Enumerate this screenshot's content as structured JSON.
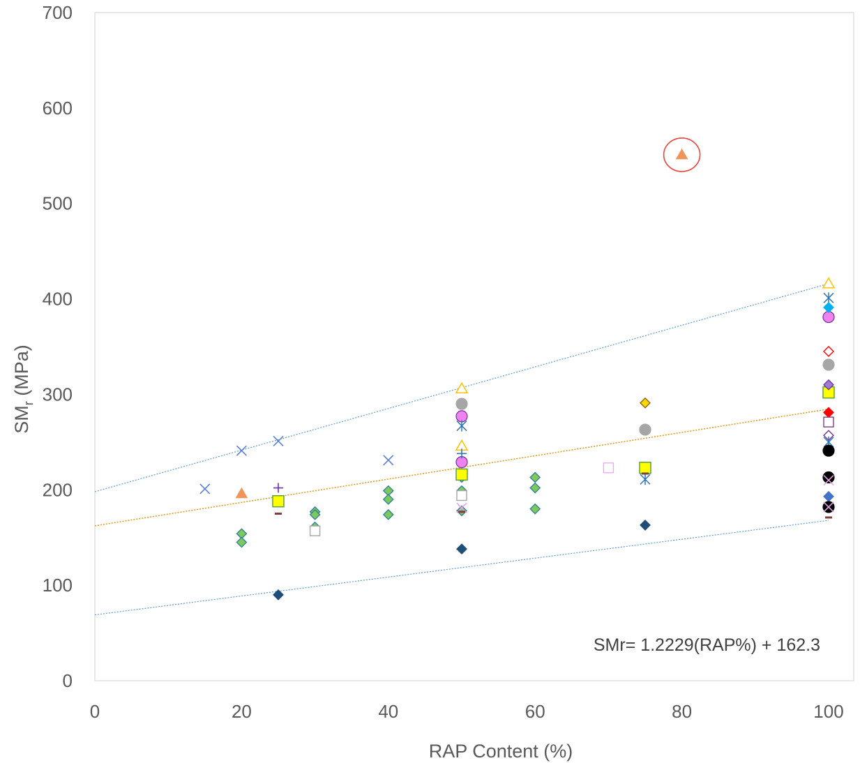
{
  "chart_data": {
    "type": "scatter",
    "title": "",
    "xlabel": "RAP Content (%)",
    "ylabel": "SMr (MPa)",
    "ylabel_parts": {
      "base": "SM",
      "sub": "r",
      "rest": " (MPa)"
    },
    "xlim": [
      0,
      100
    ],
    "ylim": [
      0,
      700
    ],
    "xticks": [
      "0",
      "20",
      "40",
      "60",
      "80",
      "100"
    ],
    "yticks": [
      "0",
      "100",
      "200",
      "300",
      "400",
      "500",
      "600",
      "700"
    ],
    "grid": false,
    "legend": "none",
    "equation": "SMr= 1.2229(RAP%) + 162.3",
    "trendlines": [
      {
        "kind": "regression",
        "color": "#E69A1C",
        "x": [
          0,
          100
        ],
        "y": [
          162.3,
          284.6
        ]
      },
      {
        "kind": "upper-bound",
        "color": "#5B9BD5",
        "x": [
          0,
          100
        ],
        "y": [
          198,
          416
        ]
      },
      {
        "kind": "lower-bound",
        "color": "#5B9BD5",
        "x": [
          0,
          100
        ],
        "y": [
          69,
          168
        ]
      }
    ],
    "highlight": {
      "x": 80,
      "y": 551,
      "color": "#E8453C"
    },
    "points": [
      {
        "x": 15,
        "y": 201,
        "marker": "x",
        "color": "#5B7FD5"
      },
      {
        "x": 20,
        "y": 241,
        "marker": "x",
        "color": "#5B7FD5"
      },
      {
        "x": 25,
        "y": 251,
        "marker": "x",
        "color": "#5B7FD5"
      },
      {
        "x": 40,
        "y": 231,
        "marker": "x",
        "color": "#5B7FD5"
      },
      {
        "x": 20,
        "y": 196,
        "marker": "triangle-filled",
        "color": "#F0955A"
      },
      {
        "x": 80,
        "y": 551,
        "marker": "triangle-filled",
        "color": "#F0955A"
      },
      {
        "x": 20,
        "y": 154,
        "marker": "diamond-filled",
        "color": "#7DC95A",
        "stroke": "#2E7DA0"
      },
      {
        "x": 20,
        "y": 145,
        "marker": "diamond-filled",
        "color": "#7DC95A",
        "stroke": "#2E7DA0"
      },
      {
        "x": 30,
        "y": 177,
        "marker": "diamond-filled",
        "color": "#7DC95A",
        "stroke": "#2E7DA0"
      },
      {
        "x": 30,
        "y": 174,
        "marker": "diamond-filled",
        "color": "#7DC95A",
        "stroke": "#2E7DA0"
      },
      {
        "x": 30,
        "y": 161,
        "marker": "diamond-filled",
        "color": "#7DC95A",
        "stroke": "#2E7DA0"
      },
      {
        "x": 40,
        "y": 199,
        "marker": "diamond-filled",
        "color": "#7DC95A",
        "stroke": "#2E7DA0"
      },
      {
        "x": 40,
        "y": 190,
        "marker": "diamond-filled",
        "color": "#7DC95A",
        "stroke": "#2E7DA0"
      },
      {
        "x": 40,
        "y": 174,
        "marker": "diamond-filled",
        "color": "#7DC95A",
        "stroke": "#2E7DA0"
      },
      {
        "x": 50,
        "y": 217,
        "marker": "diamond-filled",
        "color": "#7DC95A",
        "stroke": "#2E7DA0"
      },
      {
        "x": 50,
        "y": 213,
        "marker": "diamond-filled",
        "color": "#7DC95A",
        "stroke": "#2E7DA0"
      },
      {
        "x": 50,
        "y": 199,
        "marker": "diamond-filled",
        "color": "#7DC95A",
        "stroke": "#2E7DA0"
      },
      {
        "x": 50,
        "y": 178,
        "marker": "diamond-filled",
        "color": "#7DC95A",
        "stroke": "#2E7DA0"
      },
      {
        "x": 60,
        "y": 213,
        "marker": "diamond-filled",
        "color": "#7DC95A",
        "stroke": "#2E7DA0"
      },
      {
        "x": 60,
        "y": 202,
        "marker": "diamond-filled",
        "color": "#7DC95A",
        "stroke": "#2E7DA0"
      },
      {
        "x": 60,
        "y": 180,
        "marker": "diamond-filled",
        "color": "#7DC95A",
        "stroke": "#2E7DA0"
      },
      {
        "x": 25,
        "y": 90,
        "marker": "diamond-filled",
        "color": "#1F4E79",
        "stroke": "#1F4E79"
      },
      {
        "x": 50,
        "y": 138,
        "marker": "diamond-filled",
        "color": "#1F4E79",
        "stroke": "#1F4E79"
      },
      {
        "x": 75,
        "y": 163,
        "marker": "diamond-filled",
        "color": "#1F4E79",
        "stroke": "#1F4E79"
      },
      {
        "x": 25,
        "y": 188,
        "marker": "square-filled",
        "color": "#FFFF00",
        "stroke": "#5BA040"
      },
      {
        "x": 50,
        "y": 216,
        "marker": "square-filled",
        "color": "#FFFF00",
        "stroke": "#5BA040"
      },
      {
        "x": 75,
        "y": 223,
        "marker": "square-filled",
        "color": "#FFFF00",
        "stroke": "#5BA040"
      },
      {
        "x": 100,
        "y": 302,
        "marker": "square-filled",
        "color": "#FFFF00",
        "stroke": "#5BA040"
      },
      {
        "x": 25,
        "y": 202,
        "marker": "plus",
        "color": "#7030A0"
      },
      {
        "x": 50,
        "y": 306,
        "marker": "triangle-open",
        "color": "#FFC000"
      },
      {
        "x": 50,
        "y": 246,
        "marker": "triangle-open",
        "color": "#FFC000"
      },
      {
        "x": 100,
        "y": 416,
        "marker": "triangle-open",
        "color": "#FFC000"
      },
      {
        "x": 50,
        "y": 290,
        "marker": "circle-filled",
        "color": "#A6A6A6"
      },
      {
        "x": 75,
        "y": 263,
        "marker": "circle-filled",
        "color": "#A6A6A6"
      },
      {
        "x": 100,
        "y": 331,
        "marker": "circle-filled",
        "color": "#A6A6A6"
      },
      {
        "x": 50,
        "y": 277,
        "marker": "circle-filled",
        "color": "#EE82EE",
        "stroke": "#7030A0"
      },
      {
        "x": 50,
        "y": 229,
        "marker": "circle-filled",
        "color": "#EE82EE",
        "stroke": "#7030A0"
      },
      {
        "x": 100,
        "y": 381,
        "marker": "circle-filled",
        "color": "#EE82EE",
        "stroke": "#7030A0"
      },
      {
        "x": 50,
        "y": 267,
        "marker": "asterisk",
        "color": "#2E75B6"
      },
      {
        "x": 50,
        "y": 238,
        "marker": "plus",
        "color": "#2E75B6"
      },
      {
        "x": 75,
        "y": 211,
        "marker": "asterisk",
        "color": "#2E75B6"
      },
      {
        "x": 100,
        "y": 401,
        "marker": "asterisk",
        "color": "#2E75B6"
      },
      {
        "x": 50,
        "y": 181,
        "marker": "x",
        "color": "#E8A0E8"
      },
      {
        "x": 70,
        "y": 223,
        "marker": "square-open",
        "color": "#F4A6F4"
      },
      {
        "x": 75,
        "y": 291,
        "marker": "diamond-filled",
        "color": "#FFD700",
        "stroke": "#7F6000"
      },
      {
        "x": 100,
        "y": 391,
        "marker": "diamond-filled",
        "color": "#00B0F0",
        "stroke": "#00B0F0"
      },
      {
        "x": 100,
        "y": 345,
        "marker": "diamond-open",
        "color": "#FF0000"
      },
      {
        "x": 100,
        "y": 310,
        "marker": "diamond-filled",
        "color": "#9E7BD6",
        "stroke": "#7030A0"
      },
      {
        "x": 100,
        "y": 281,
        "marker": "diamond-filled",
        "color": "#FF0000",
        "stroke": "#FF0000"
      },
      {
        "x": 100,
        "y": 271,
        "marker": "square-open",
        "color": "#7F3F7F"
      },
      {
        "x": 100,
        "y": 257,
        "marker": "diamond-open",
        "color": "#7030A0"
      },
      {
        "x": 100,
        "y": 250,
        "marker": "asterisk",
        "color": "#2E75B6"
      },
      {
        "x": 100,
        "y": 241,
        "marker": "circle-filled",
        "color": "#000000"
      },
      {
        "x": 100,
        "y": 213,
        "marker": "circle-filled",
        "color": "#000000"
      },
      {
        "x": 100,
        "y": 210,
        "marker": "x",
        "color": "#E8A0E8"
      },
      {
        "x": 100,
        "y": 193,
        "marker": "diamond-filled",
        "color": "#4472C4",
        "stroke": "#4472C4"
      },
      {
        "x": 100,
        "y": 182,
        "marker": "circle-filled",
        "color": "#000000"
      },
      {
        "x": 100,
        "y": 182,
        "marker": "x",
        "color": "#E8A0E8"
      },
      {
        "x": 100,
        "y": 171,
        "marker": "dash",
        "color": "#7F3F3F"
      },
      {
        "x": 25,
        "y": 175,
        "marker": "dash",
        "color": "#7F3F3F"
      },
      {
        "x": 50,
        "y": 177,
        "marker": "dash",
        "color": "#7F3F3F"
      },
      {
        "x": 75,
        "y": 217,
        "marker": "dash",
        "color": "#7F3F3F"
      },
      {
        "x": 30,
        "y": 157,
        "marker": "square-open",
        "color": "#A6A6A6"
      },
      {
        "x": 50,
        "y": 194,
        "marker": "square-open",
        "color": "#A6A6A6"
      }
    ]
  }
}
